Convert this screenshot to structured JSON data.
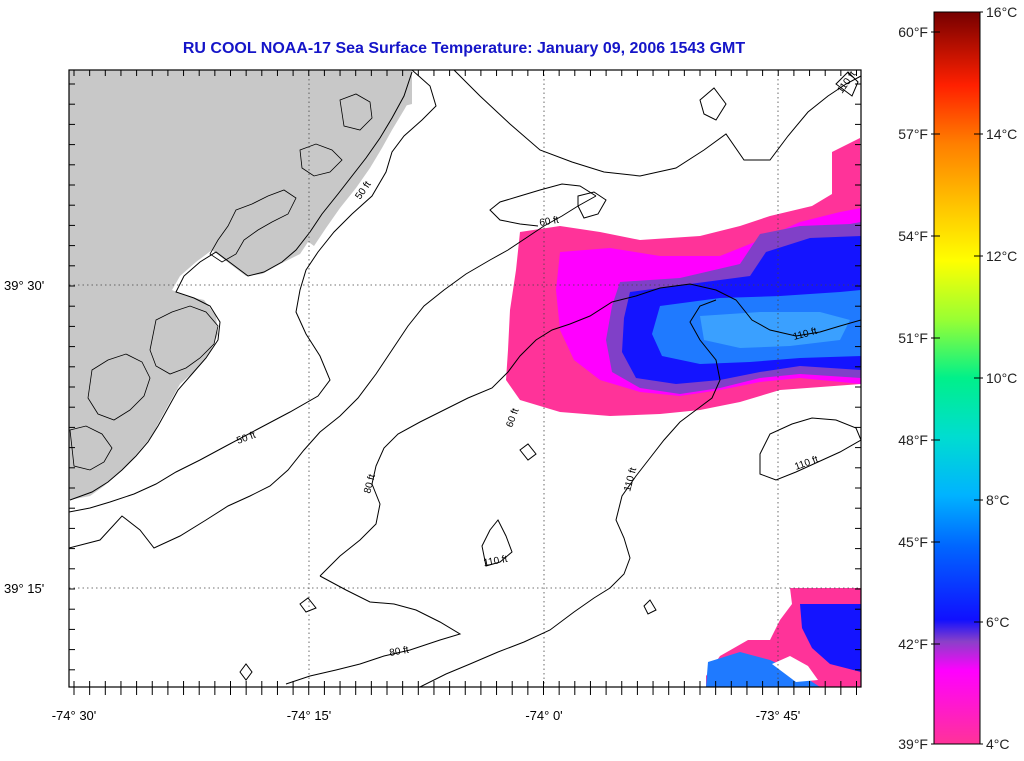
{
  "title": "RU COOL  NOAA-17  Sea Surface Temperature:  January 09, 2006 1543 GMT",
  "x_axis_labels": [
    "-74° 30'",
    "-74° 15'",
    "-74° 0'",
    "-73° 45'"
  ],
  "y_axis_labels": [
    "39° 30'",
    "39° 15'"
  ],
  "depth_contours": [
    {
      "label": "50 ft",
      "count": 3
    },
    {
      "label": "80 ft",
      "count": 2
    },
    {
      "label": "60 ft",
      "count": 2
    },
    {
      "label": "110 ft",
      "count": 5
    }
  ],
  "colorbar": {
    "fahrenheit_labels": [
      "60°F",
      "57°F",
      "54°F",
      "51°F",
      "48°F",
      "45°F",
      "42°F",
      "39°F"
    ],
    "celsius_labels": [
      "16°C",
      "14°C",
      "12°C",
      "10°C",
      "8°C",
      "6°C",
      "4°C"
    ],
    "colors": [
      "#7a0000",
      "#e60000",
      "#ff8c00",
      "#ffff00",
      "#00ff7f",
      "#00e5ff",
      "#0a0aff",
      "#ff00ff",
      "#ff3399"
    ]
  },
  "colors": {
    "land": "#c8c8c8",
    "title": "#1515c8",
    "sst_warm": "#ff3399",
    "sst_cold": "#0a14ff"
  }
}
